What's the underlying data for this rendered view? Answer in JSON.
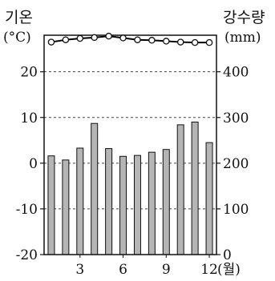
{
  "chart_data": {
    "type": "bar+line",
    "months": [
      1,
      2,
      3,
      4,
      5,
      6,
      7,
      8,
      9,
      10,
      11,
      12
    ],
    "x_tick_labels": [
      {
        "month": 3,
        "text": "3"
      },
      {
        "month": 6,
        "text": "6"
      },
      {
        "month": 9,
        "text": "9"
      },
      {
        "month": 12,
        "text": "12"
      }
    ],
    "x_unit": "(월)",
    "left_axis": {
      "title": "기온",
      "unit": "(°C)",
      "range": [
        -20,
        28
      ],
      "ticks": [
        "20",
        "10",
        "0",
        "-10",
        "-20"
      ],
      "tick_values": [
        20,
        10,
        0,
        -10,
        -20
      ]
    },
    "right_axis": {
      "title": "강수량",
      "unit": "(mm)",
      "range": [
        0,
        480
      ],
      "ticks": [
        "400",
        "300",
        "200",
        "100",
        "0"
      ],
      "tick_values": [
        400,
        300,
        200,
        100,
        0
      ]
    },
    "precipitation_mm": [
      216,
      207,
      233,
      287,
      232,
      215,
      217,
      224,
      230,
      284,
      290,
      245
    ],
    "temperature_c": [
      26.5,
      27.0,
      27.3,
      27.5,
      27.8,
      27.4,
      27.0,
      26.9,
      26.7,
      26.5,
      26.4,
      26.4
    ],
    "grid": "dashed at 20, 10, 0, -10",
    "colors": {
      "bar": "#b5b5b5",
      "line": "#000000",
      "marker_fill": "#ffffff"
    }
  }
}
